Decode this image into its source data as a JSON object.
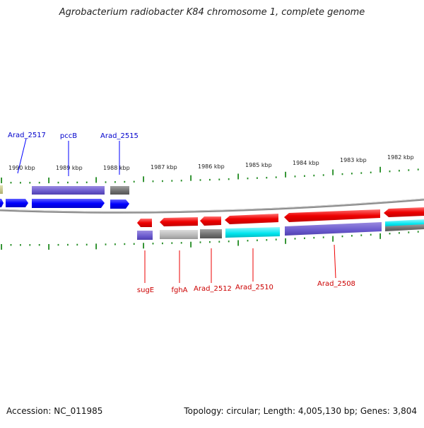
{
  "title": "Agrobacterium radiobacter K84 chromosome 1, complete genome",
  "footer": {
    "accession": "Accession: NC_011985",
    "summary": "Topology: circular; Length: 4,005,130 bp; Genes: 3,804"
  },
  "scale": {
    "unit": "kbp",
    "ticks": [
      "1990 kbp",
      "1989 kbp",
      "1988 kbp",
      "1987 kbp",
      "1986 kbp",
      "1985 kbp",
      "1984 kbp",
      "1983 kbp",
      "1982 kbp"
    ]
  },
  "colors": {
    "gene_top": "#0000ff",
    "gene_bottom": "#ee0000",
    "cds_purple": "#6a5acd",
    "cds_gray": "#6e6e6e",
    "cds_lightgray": "#b8b8b8",
    "cds_cyan": "#00e5ee",
    "cds_olive": "#c8c890",
    "tick_green": "#228b22",
    "backbone": "#8c8c8c"
  },
  "genes_top": [
    {
      "label": "Arad_2517"
    },
    {
      "label": "pccB"
    },
    {
      "label": "Arad_2515"
    }
  ],
  "genes_bottom": [
    {
      "label": "sugE"
    },
    {
      "label": "fghA"
    },
    {
      "label": "Arad_2512"
    },
    {
      "label": "Arad_2510"
    },
    {
      "label": "Arad_2508"
    }
  ]
}
